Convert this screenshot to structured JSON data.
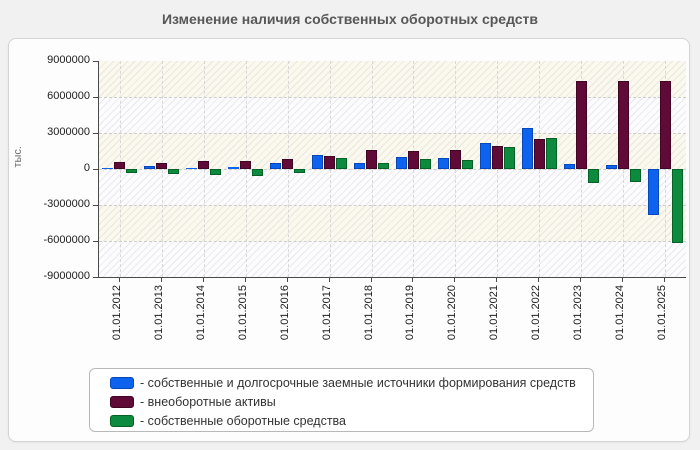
{
  "chart_data": {
    "type": "bar",
    "title": "Изменение наличия собственных оборотных средств",
    "xlabel": "",
    "ylabel": "тыс.",
    "ylim": [
      -9000000,
      9000000
    ],
    "yticks": [
      9000000,
      6000000,
      3000000,
      0,
      -3000000,
      -6000000,
      -9000000
    ],
    "grid": "dashed",
    "legend_position": "bottom",
    "categories": [
      "01.01.2012",
      "01.01.2013",
      "01.01.2014",
      "01.01.2015",
      "01.01.2016",
      "01.01.2017",
      "01.01.2018",
      "01.01.2019",
      "01.01.2020",
      "01.01.2021",
      "01.01.2022",
      "01.01.2023",
      "01.01.2024",
      "01.01.2025"
    ],
    "series": [
      {
        "key": "sources",
        "name": "собственные и долгосрочные заемные источники формирования средств",
        "color": "#0e63ee",
        "border": "#0847b8",
        "values": [
          100000,
          280000,
          100000,
          200000,
          520000,
          1180000,
          470000,
          1030000,
          950000,
          2150000,
          3420000,
          440000,
          300000,
          -3800000
        ]
      },
      {
        "key": "noncurrent-assets",
        "name": "внеоборотные активы",
        "color": "#600a37",
        "border": "#3f0522",
        "values": [
          600000,
          520000,
          650000,
          680000,
          820000,
          1050000,
          1600000,
          1500000,
          1600000,
          1950000,
          2520000,
          7300000,
          7300000,
          7350000
        ]
      },
      {
        "key": "working-capital",
        "name": "собственные оборотные средства",
        "color": "#0c8b3e",
        "border": "#066127",
        "values": [
          -320000,
          -380000,
          -520000,
          -570000,
          -370000,
          900000,
          500000,
          820000,
          760000,
          1800000,
          2570000,
          -1200000,
          -1060000,
          -6150000
        ]
      }
    ]
  },
  "legend": {
    "prefix": "-"
  }
}
